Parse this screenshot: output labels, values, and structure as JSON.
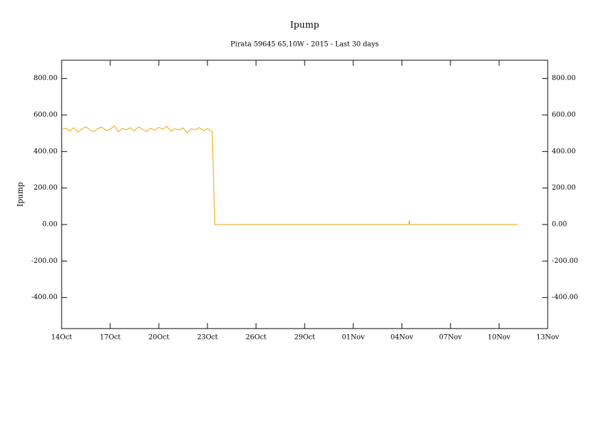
{
  "chart_data": {
    "type": "line",
    "title": "Ipump",
    "subtitle": "Pirata 59645 65,10W - 2015 - Last 30 days",
    "y_label": "Ipump",
    "xlim": [
      "2015-10-14T00:00",
      "2015-11-13T00:00"
    ],
    "xticks": [
      {
        "value": "2015-10-14T00:00",
        "label": "14Oct"
      },
      {
        "value": "2015-10-17T00:00",
        "label": "17Oct"
      },
      {
        "value": "2015-10-20T00:00",
        "label": "20Oct"
      },
      {
        "value": "2015-10-23T00:00",
        "label": "23Oct"
      },
      {
        "value": "2015-10-26T00:00",
        "label": "26Oct"
      },
      {
        "value": "2015-10-29T00:00",
        "label": "29Oct"
      },
      {
        "value": "2015-11-01T00:00",
        "label": "01Nov"
      },
      {
        "value": "2015-11-04T00:00",
        "label": "04Nov"
      },
      {
        "value": "2015-11-07T00:00",
        "label": "07Nov"
      },
      {
        "value": "2015-11-10T00:00",
        "label": "10Nov"
      },
      {
        "value": "2015-11-13T00:00",
        "label": "13Nov"
      }
    ],
    "ylim": [
      -570,
      900
    ],
    "yticks": [
      {
        "value": -400,
        "label": "-400.00"
      },
      {
        "value": -200,
        "label": "-200.00"
      },
      {
        "value": 0,
        "label": "0.00"
      },
      {
        "value": 200,
        "label": "200.00"
      },
      {
        "value": 400,
        "label": "400.00"
      },
      {
        "value": 600,
        "label": "600.00"
      },
      {
        "value": 800,
        "label": "800.00"
      }
    ],
    "x": [
      "2015-10-14T00:00",
      "2015-10-14T06:00",
      "2015-10-14T12:00",
      "2015-10-14T18:00",
      "2015-10-15T00:00",
      "2015-10-15T06:00",
      "2015-10-15T12:00",
      "2015-10-15T18:00",
      "2015-10-16T00:00",
      "2015-10-16T06:00",
      "2015-10-16T12:00",
      "2015-10-16T18:00",
      "2015-10-17T00:00",
      "2015-10-17T06:00",
      "2015-10-17T12:00",
      "2015-10-17T18:00",
      "2015-10-18T00:00",
      "2015-10-18T06:00",
      "2015-10-18T12:00",
      "2015-10-18T18:00",
      "2015-10-19T00:00",
      "2015-10-19T06:00",
      "2015-10-19T12:00",
      "2015-10-19T18:00",
      "2015-10-20T00:00",
      "2015-10-20T06:00",
      "2015-10-20T12:00",
      "2015-10-20T18:00",
      "2015-10-21T00:00",
      "2015-10-21T06:00",
      "2015-10-21T12:00",
      "2015-10-21T18:00",
      "2015-10-22T00:00",
      "2015-10-22T06:00",
      "2015-10-22T12:00",
      "2015-10-22T18:00",
      "2015-10-23T00:00",
      "2015-10-23T07:00",
      "2015-10-23T09:00",
      "2015-10-23T11:00",
      "2015-10-24T00:00",
      "2015-10-26T00:00",
      "2015-10-28T00:00",
      "2015-10-30T00:00",
      "2015-11-01T00:00",
      "2015-11-03T00:00",
      "2015-11-04T10:00",
      "2015-11-04T11:00",
      "2015-11-04T12:00",
      "2015-11-06T00:00",
      "2015-11-08T00:00",
      "2015-11-10T00:00",
      "2015-11-11T04:00"
    ],
    "series": [
      {
        "name": "Ipump",
        "color": "#f0a000",
        "values": [
          520,
          528,
          512,
          531,
          505,
          524,
          536,
          518,
          510,
          527,
          533,
          515,
          522,
          540,
          508,
          526,
          519,
          530,
          512,
          535,
          521,
          509,
          528,
          516,
          532,
          523,
          538,
          511,
          525,
          517,
          529,
          502,
          524,
          520,
          531,
          514,
          526,
          510,
          250,
          0,
          0,
          0,
          0,
          0,
          0,
          0,
          0,
          22,
          0,
          0,
          0,
          0,
          0
        ]
      }
    ]
  }
}
